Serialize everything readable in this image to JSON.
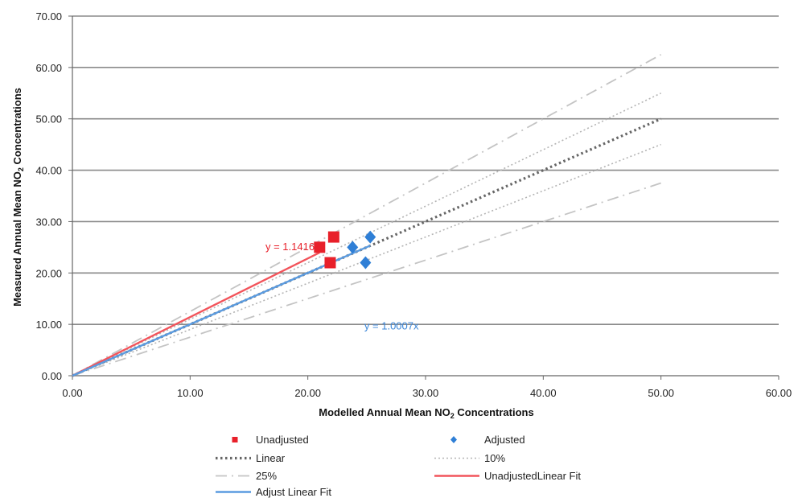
{
  "chart_data": {
    "type": "scatter",
    "xlabel": "Modelled  Annual Mean NO",
    "xlabel_sub": "2",
    "xlabel_tail": " Concentrations",
    "ylabel": "Measured Annual Mean NO",
    "ylabel_sub": "2",
    "ylabel_tail": " Concentrations",
    "xlim": [
      0,
      60
    ],
    "ylim": [
      0,
      70
    ],
    "x_ticks": [
      "0.00",
      "10.00",
      "20.00",
      "30.00",
      "40.00",
      "50.00",
      "60.00"
    ],
    "y_ticks": [
      "0.00",
      "10.00",
      "20.00",
      "30.00",
      "40.00",
      "50.00",
      "60.00",
      "70.00"
    ],
    "grid": "horizontal",
    "series": [
      {
        "name": "Unadjusted",
        "kind": "points",
        "marker": "square",
        "color": "#e8202a",
        "x": [
          21.0,
          22.2,
          21.9
        ],
        "y": [
          25.0,
          27.0,
          22.0
        ]
      },
      {
        "name": "Adjusted",
        "kind": "points",
        "marker": "diamond",
        "color": "#2f7fd6",
        "x": [
          23.8,
          25.3,
          24.9
        ],
        "y": [
          25.0,
          27.0,
          22.0
        ]
      },
      {
        "name": "Linear",
        "kind": "line",
        "style": "dotted",
        "color": "#666666",
        "slopes": [
          1.0
        ],
        "x_max": 50
      },
      {
        "name": "10%",
        "kind": "line",
        "style": "dotted-light",
        "color": "#b4b4b4",
        "slopes": [
          1.1,
          0.9
        ],
        "x_max": 50
      },
      {
        "name": "25%",
        "kind": "line",
        "style": "dashdot",
        "color": "#c4c4c4",
        "slopes": [
          1.25,
          0.75
        ],
        "x_max": 50
      },
      {
        "name": "UnadjustedLinear Fit",
        "kind": "fit",
        "color": "#f2545b",
        "slope": 1.1416,
        "x_max": 21.0
      },
      {
        "name": "Adjust Linear Fit",
        "kind": "fit",
        "color": "#5a9be0",
        "slope": 1.0007,
        "x_max": 25.3
      }
    ],
    "annotations": [
      {
        "text": "y = 1.1416x",
        "x": 16.4,
        "y": 24.4,
        "color": "#e8202a"
      },
      {
        "text": "y = 1.0007x",
        "x": 24.8,
        "y": 9.0,
        "color": "#3a86d9"
      }
    ],
    "legend": "bottom"
  }
}
